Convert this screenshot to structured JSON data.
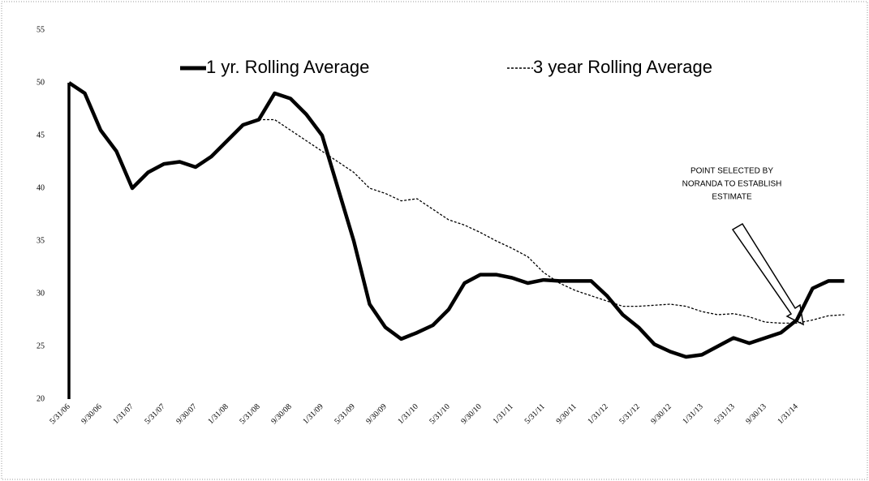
{
  "chart_data": {
    "type": "line",
    "categories": [
      "5/31/06",
      null,
      "9/30/06",
      null,
      "1/31/07",
      null,
      "5/31/07",
      null,
      "9/30/07",
      null,
      "1/31/08",
      null,
      "5/31/08",
      null,
      "9/30/08",
      null,
      "1/31/09",
      null,
      "5/31/09",
      null,
      "9/30/09",
      null,
      "1/31/10",
      null,
      "5/31/10",
      null,
      "9/30/10",
      null,
      "1/31/11",
      null,
      "5/31/11",
      null,
      "9/30/11",
      null,
      "1/31/12",
      null,
      "5/31/12",
      null,
      "9/30/12",
      null,
      "1/31/13",
      null,
      "5/31/13",
      null,
      "9/30/13",
      null,
      "1/31/14",
      null,
      null,
      null
    ],
    "series": [
      {
        "name": "1 yr. Rolling Average",
        "color": "#000000",
        "style": "solid",
        "values": [
          50,
          49,
          45.5,
          43.5,
          40,
          41.5,
          42.3,
          42.5,
          42,
          43,
          44.5,
          46,
          46.5,
          49,
          48.5,
          47,
          45,
          40,
          35,
          29,
          26.8,
          25.7,
          26.3,
          27,
          28.5,
          31,
          31.8,
          31.8,
          31.5,
          31,
          31.3,
          31.2,
          31.2,
          31.2,
          29.8,
          28,
          26.8,
          25.2,
          24.5,
          24,
          24.2,
          25,
          25.8,
          25.3,
          25.8,
          26.3,
          27.5,
          30.5,
          31.2,
          31.2
        ]
      },
      {
        "name": "3 year Rolling Average",
        "color": "#000000",
        "style": "dashed",
        "values": [
          null,
          null,
          null,
          null,
          null,
          null,
          null,
          null,
          null,
          null,
          null,
          null,
          46.5,
          46.5,
          45.5,
          44.5,
          43.5,
          42.5,
          41.5,
          40,
          39.5,
          38.8,
          39,
          38,
          37,
          36.5,
          35.8,
          35,
          34.3,
          33.5,
          32,
          31,
          30.3,
          29.8,
          29.3,
          28.8,
          28.8,
          28.9,
          29,
          28.8,
          28.3,
          28,
          28.1,
          27.8,
          27.3,
          27.2,
          27.2,
          27.5,
          27.9,
          28
        ]
      }
    ],
    "ylim": [
      20,
      55
    ],
    "yticks": [
      20,
      25,
      30,
      35,
      40,
      45,
      50,
      55
    ],
    "grid": false,
    "annotation": [
      "POINT SELECTED BY",
      "NORANDA TO ESTABLISH",
      "ESTIMATE"
    ]
  }
}
